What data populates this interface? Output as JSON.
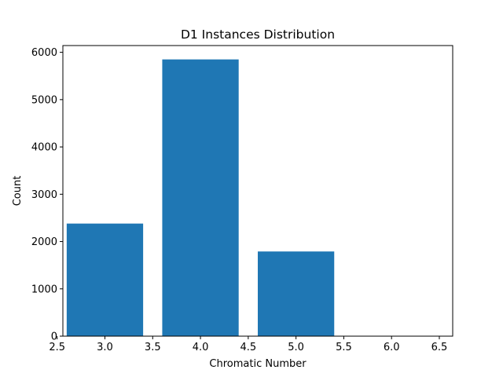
{
  "chart_data": {
    "type": "bar",
    "title": "D1 Instances Distribution",
    "xlabel": "Chromatic Number",
    "ylabel": "Count",
    "x": [
      3,
      4,
      5
    ],
    "values": [
      2380,
      5850,
      1790
    ],
    "bar_width": 0.8,
    "xlim": [
      2.56,
      6.64
    ],
    "ylim": [
      0,
      6143
    ],
    "xticks": [
      2.5,
      3.0,
      3.5,
      4.0,
      4.5,
      5.0,
      5.5,
      6.0,
      6.5
    ],
    "xtick_labels": [
      "2.5",
      "3.0",
      "3.5",
      "4.0",
      "4.5",
      "5.0",
      "5.5",
      "6.0",
      "6.5"
    ],
    "yticks": [
      0,
      1000,
      2000,
      3000,
      4000,
      5000,
      6000
    ],
    "ytick_labels": [
      "0",
      "1000",
      "2000",
      "3000",
      "4000",
      "5000",
      "6000"
    ],
    "bar_color": "#1f77b4",
    "grid": false,
    "legend": "none"
  }
}
